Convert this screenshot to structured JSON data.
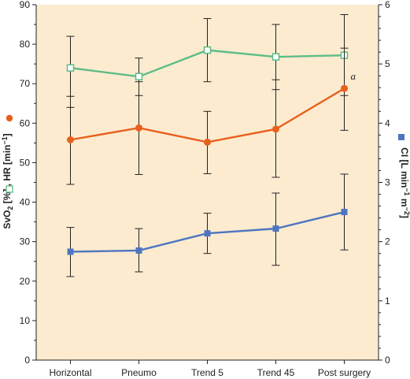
{
  "chart_data": {
    "type": "line",
    "categories": [
      "Horizontal",
      "Pneumo",
      "Trend 5",
      "Trend 45",
      "Post surgery"
    ],
    "left_axis": {
      "label_parts": [
        "SvO",
        "2",
        " [%] ",
        ", HR [min",
        "−1",
        "]"
      ],
      "ylim": [
        0,
        90
      ],
      "ticks": [
        0,
        10,
        20,
        30,
        40,
        50,
        60,
        70,
        80,
        90
      ]
    },
    "right_axis": {
      "label_parts": [
        "CI [L min",
        "−1",
        " m",
        "−2",
        "]"
      ],
      "ylim": [
        0,
        6
      ],
      "ticks": [
        0,
        1,
        2,
        3,
        4,
        5,
        6
      ]
    },
    "series": [
      {
        "key": "hr",
        "axis": "left",
        "color": "#5cbd86",
        "marker": "open-square",
        "values": [
          74,
          71.8,
          78.5,
          76.8,
          77.2
        ],
        "err_low": [
          64,
          67,
          70.5,
          68.5,
          67
        ],
        "err_high": [
          82,
          76.5,
          86.5,
          85,
          87.5
        ]
      },
      {
        "key": "svo2",
        "axis": "left",
        "color": "#e8601c",
        "marker": "filled-circle",
        "values": [
          55.8,
          58.8,
          55.2,
          58.5,
          68.8
        ],
        "err_low": [
          44.5,
          47,
          47.2,
          46.3,
          58.2
        ],
        "err_high": [
          66.8,
          70.5,
          63,
          71,
          79
        ]
      },
      {
        "key": "ci",
        "axis": "right",
        "color": "#4e76c0",
        "marker": "filled-square",
        "values": [
          1.83,
          1.85,
          2.14,
          2.22,
          2.5
        ],
        "err_low": [
          1.41,
          1.49,
          1.8,
          1.6,
          1.86
        ],
        "err_high": [
          2.24,
          2.22,
          2.48,
          2.82,
          3.14
        ]
      }
    ],
    "annotations": [
      {
        "text": "a",
        "category": "Post surgery",
        "series": "svo2"
      }
    ],
    "grid": false,
    "background_color": "#fdebd0",
    "legend_markers": {
      "svo2_color": "#e8601c",
      "hr_color": "#5cbd86",
      "ci_color": "#4e76c0"
    }
  }
}
